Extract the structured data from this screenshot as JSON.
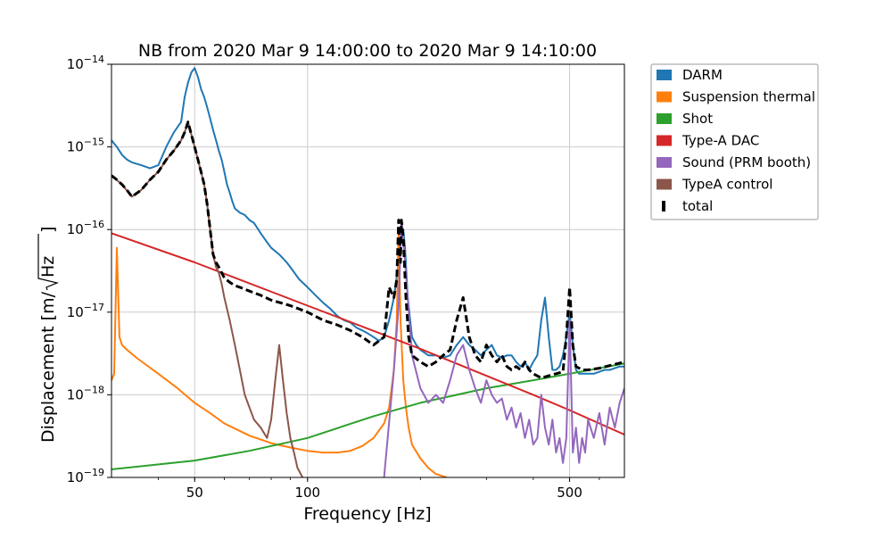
{
  "chart_data": {
    "type": "line",
    "title": "NB from 2020 Mar 9 14:00:00 to 2020 Mar 9 14:10:00",
    "xlabel": "Frequency [Hz]",
    "ylabel_main": "Displacement [m/",
    "ylabel_sqrt": "Hz",
    "ylabel_close": "]",
    "x_scale": "log",
    "y_scale": "log",
    "xlim": [
      30,
      700
    ],
    "ylim": [
      1e-19,
      1e-14
    ],
    "x_ticks": [
      {
        "value": 50,
        "label": "50"
      },
      {
        "value": 100,
        "label": "100"
      },
      {
        "value": 500,
        "label": "500"
      }
    ],
    "y_ticks": [
      {
        "value": 1e-19,
        "exp": "−19"
      },
      {
        "value": 1e-18,
        "exp": "−18"
      },
      {
        "value": 1e-17,
        "exp": "−17"
      },
      {
        "value": 1e-16,
        "exp": "−16"
      },
      {
        "value": 1e-15,
        "exp": "−15"
      },
      {
        "value": 1e-14,
        "exp": "−14"
      }
    ],
    "y_tick_base": "10",
    "grid": true,
    "legend_position": "outside-top-right",
    "series": [
      {
        "name": "DARM",
        "color": "#1f77b4",
        "style": "solid",
        "x": [
          30,
          31,
          32,
          33,
          34,
          36,
          38,
          40,
          42,
          44,
          46,
          47,
          48,
          49,
          50,
          51,
          52,
          53,
          54,
          55,
          56,
          57,
          58,
          59,
          60,
          61,
          62,
          63,
          64,
          66,
          68,
          70,
          72,
          75,
          78,
          80,
          84,
          88,
          90,
          95,
          100,
          105,
          110,
          115,
          120,
          125,
          130,
          135,
          140,
          145,
          150,
          155,
          160,
          165,
          170,
          175,
          178,
          180,
          182,
          185,
          190,
          195,
          200,
          210,
          220,
          230,
          240,
          250,
          260,
          270,
          280,
          290,
          300,
          310,
          320,
          330,
          340,
          350,
          360,
          370,
          380,
          390,
          400,
          410,
          420,
          430,
          440,
          450,
          460,
          470,
          480,
          490,
          500,
          510,
          520,
          530,
          540,
          550,
          560,
          580,
          600,
          620,
          640,
          660,
          680,
          700
        ],
        "y": [
          1.2e-15,
          1e-15,
          8e-16,
          7e-16,
          6.5e-16,
          6e-16,
          5.5e-16,
          6e-16,
          1e-15,
          1.5e-15,
          2e-15,
          4e-15,
          6e-15,
          8e-15,
          9e-15,
          7e-15,
          5e-15,
          4e-15,
          3e-15,
          2.2e-15,
          1.6e-15,
          1.2e-15,
          9e-16,
          7e-16,
          5e-16,
          3.5e-16,
          2.8e-16,
          2.2e-16,
          1.8e-16,
          1.6e-16,
          1.5e-16,
          1.3e-16,
          1.2e-16,
          9e-17,
          7e-17,
          6e-17,
          5e-17,
          4e-17,
          3.5e-17,
          2.5e-17,
          2e-17,
          1.6e-17,
          1.3e-17,
          1.1e-17,
          9e-18,
          8e-18,
          7.5e-18,
          6.5e-18,
          6e-18,
          5.5e-18,
          5e-18,
          4.5e-18,
          5e-18,
          8e-18,
          1.5e-17,
          4e-17,
          8e-17,
          1e-16,
          6e-17,
          1.5e-17,
          5e-18,
          4e-18,
          3.5e-18,
          3e-18,
          3e-18,
          2.8e-18,
          3e-18,
          4e-18,
          5e-18,
          4e-18,
          3.5e-18,
          3e-18,
          3.5e-18,
          4e-18,
          3e-18,
          2.8e-18,
          3e-18,
          3e-18,
          2.5e-18,
          2.2e-18,
          2.5e-18,
          2e-18,
          2.5e-18,
          3e-18,
          8e-18,
          1.5e-17,
          5e-18,
          2e-18,
          2e-18,
          2.2e-18,
          3e-18,
          5e-18,
          1e-17,
          4e-18,
          2e-18,
          1.8e-18,
          1.8e-18,
          1.8e-18,
          1.8e-18,
          1.8e-18,
          1.9e-18,
          2e-18,
          2e-18,
          2.1e-18,
          2.2e-18,
          2.2e-18
        ]
      },
      {
        "name": "Suspension thermal",
        "color": "#ff7f0e",
        "style": "solid",
        "x": [
          30,
          30.5,
          31,
          31.5,
          32,
          33,
          35,
          40,
          45,
          50,
          55,
          60,
          70,
          80,
          90,
          100,
          110,
          120,
          130,
          140,
          150,
          160,
          165,
          170,
          173,
          175,
          177,
          180,
          183,
          186,
          190,
          200,
          210,
          220,
          235
        ],
        "y": [
          1.5e-18,
          1.8e-18,
          6e-17,
          5e-18,
          4e-18,
          3.5e-18,
          2.8e-18,
          1.8e-18,
          1.2e-18,
          8e-19,
          6e-19,
          4.5e-19,
          3.2e-19,
          2.6e-19,
          2.3e-19,
          2.1e-19,
          2e-19,
          2e-19,
          2.1e-19,
          2.4e-19,
          3e-19,
          4.5e-19,
          7e-19,
          2e-18,
          8e-18,
          1e-16,
          8e-18,
          1.5e-18,
          7e-19,
          4e-19,
          2.5e-19,
          1.7e-19,
          1.3e-19,
          1.1e-19,
          1e-19
        ]
      },
      {
        "name": "Shot",
        "color": "#2ca02c",
        "style": "solid",
        "x": [
          30,
          50,
          70,
          100,
          150,
          200,
          300,
          400,
          500,
          600,
          700
        ],
        "y": [
          1.25e-19,
          1.6e-19,
          2.1e-19,
          3e-19,
          5.5e-19,
          8e-19,
          1.2e-18,
          1.5e-18,
          1.8e-18,
          2.1e-18,
          2.4e-18
        ]
      },
      {
        "name": "Type-A DAC",
        "color": "#d62728",
        "style": "solid",
        "x": [
          30,
          50,
          100,
          200,
          300,
          400,
          500,
          600,
          700
        ],
        "y": [
          9e-17,
          4e-17,
          1.2e-17,
          3.6e-18,
          1.7e-18,
          1e-18,
          6.5e-19,
          4.5e-19,
          3.3e-19
        ]
      },
      {
        "name": "Sound (PRM booth)",
        "color": "#9467bd",
        "style": "solid",
        "x": [
          160,
          170,
          175,
          178,
          180,
          185,
          190,
          200,
          210,
          220,
          230,
          240,
          250,
          260,
          270,
          280,
          290,
          300,
          310,
          320,
          330,
          340,
          350,
          360,
          370,
          380,
          390,
          400,
          410,
          420,
          430,
          440,
          450,
          460,
          470,
          480,
          490,
          500,
          510,
          520,
          530,
          540,
          550,
          560,
          580,
          600,
          620,
          640,
          660,
          680,
          700
        ],
        "y": [
          1e-19,
          2e-18,
          1.2e-17,
          1.3e-16,
          8e-17,
          1.5e-17,
          3e-18,
          1.2e-18,
          8e-19,
          1e-18,
          8e-19,
          1.5e-18,
          3e-18,
          4e-18,
          2e-18,
          1.2e-18,
          8e-19,
          1.5e-18,
          1e-18,
          8e-19,
          9e-19,
          5e-19,
          7e-19,
          4e-19,
          6e-19,
          3e-19,
          5e-19,
          2.5e-19,
          3e-19,
          1e-18,
          4e-19,
          2.5e-19,
          5e-19,
          2e-19,
          3e-19,
          1.5e-19,
          3e-19,
          8e-18,
          2e-19,
          4e-19,
          1.5e-19,
          3e-19,
          2e-19,
          5e-19,
          3e-19,
          6e-19,
          2.5e-19,
          7e-19,
          4e-19,
          8e-19,
          1.2e-18
        ]
      },
      {
        "name": "TypeA control",
        "color": "#8c564b",
        "style": "solid",
        "x": [
          30,
          32,
          34,
          36,
          38,
          40,
          42,
          44,
          46,
          47,
          48,
          49,
          50,
          51,
          52,
          53,
          54,
          55,
          56,
          57,
          58,
          59,
          60,
          62,
          64,
          66,
          68,
          70,
          72,
          75,
          78,
          80,
          82,
          84,
          86,
          88,
          90,
          92,
          94,
          97
        ],
        "y": [
          4.5e-16,
          3.5e-16,
          2.5e-16,
          3e-16,
          4e-16,
          5e-16,
          7e-16,
          9e-16,
          1.2e-15,
          1.5e-15,
          2e-15,
          1.4e-15,
          1e-15,
          7e-16,
          5e-16,
          3.5e-16,
          2e-16,
          1e-16,
          5e-17,
          3.5e-17,
          3e-17,
          2.2e-17,
          1.5e-17,
          8e-18,
          4e-18,
          2e-18,
          1e-18,
          7e-19,
          5e-19,
          4e-19,
          3e-19,
          5e-19,
          1.5e-18,
          4e-18,
          1.5e-18,
          6e-19,
          3e-19,
          2e-19,
          1.3e-19,
          1e-19
        ]
      },
      {
        "name": "total",
        "color": "#000000",
        "style": "dashed",
        "x": [
          30,
          31,
          32,
          33,
          34,
          36,
          38,
          40,
          42,
          44,
          46,
          47,
          48,
          49,
          50,
          51,
          52,
          53,
          54,
          55,
          56,
          57,
          58,
          59,
          60,
          62,
          64,
          66,
          70,
          75,
          80,
          90,
          100,
          110,
          120,
          130,
          140,
          150,
          160,
          165,
          170,
          173,
          175,
          177,
          178,
          180,
          183,
          186,
          190,
          200,
          210,
          220,
          230,
          240,
          250,
          260,
          270,
          280,
          290,
          300,
          310,
          320,
          330,
          340,
          350,
          360,
          370,
          380,
          390,
          400,
          420,
          440,
          460,
          480,
          490,
          500,
          510,
          520,
          540,
          560,
          600,
          650,
          700
        ],
        "y": [
          4.5e-16,
          4e-16,
          3.5e-16,
          3e-16,
          2.5e-16,
          3e-16,
          4e-16,
          5e-16,
          7e-16,
          9e-16,
          1.2e-15,
          1.5e-15,
          2e-15,
          1.4e-15,
          1e-15,
          7e-16,
          5e-16,
          3.5e-16,
          2e-16,
          1e-16,
          5e-17,
          4e-17,
          3.5e-17,
          3e-17,
          2.6e-17,
          2.3e-17,
          2.1e-17,
          2e-17,
          1.8e-17,
          1.6e-17,
          1.4e-17,
          1.2e-17,
          1e-17,
          8e-18,
          7e-18,
          6e-18,
          5e-18,
          4e-18,
          5e-18,
          2e-17,
          1.5e-17,
          2.5e-17,
          1.3e-16,
          4e-17,
          1.3e-16,
          8e-17,
          1.5e-17,
          5e-18,
          3e-18,
          2.5e-18,
          2.2e-18,
          2.5e-18,
          3e-18,
          3.5e-18,
          8e-18,
          1.5e-17,
          5e-18,
          3e-18,
          2.5e-18,
          4e-18,
          3e-18,
          2.5e-18,
          3e-18,
          2.2e-18,
          2e-18,
          2.2e-18,
          2e-18,
          2.5e-18,
          2e-18,
          1.8e-18,
          1.6e-18,
          1.7e-18,
          1.8e-18,
          1.9e-18,
          5e-18,
          2e-17,
          4e-18,
          2.2e-18,
          2e-18,
          2e-18,
          2.1e-18,
          2.3e-18,
          2.5e-18
        ]
      }
    ]
  }
}
